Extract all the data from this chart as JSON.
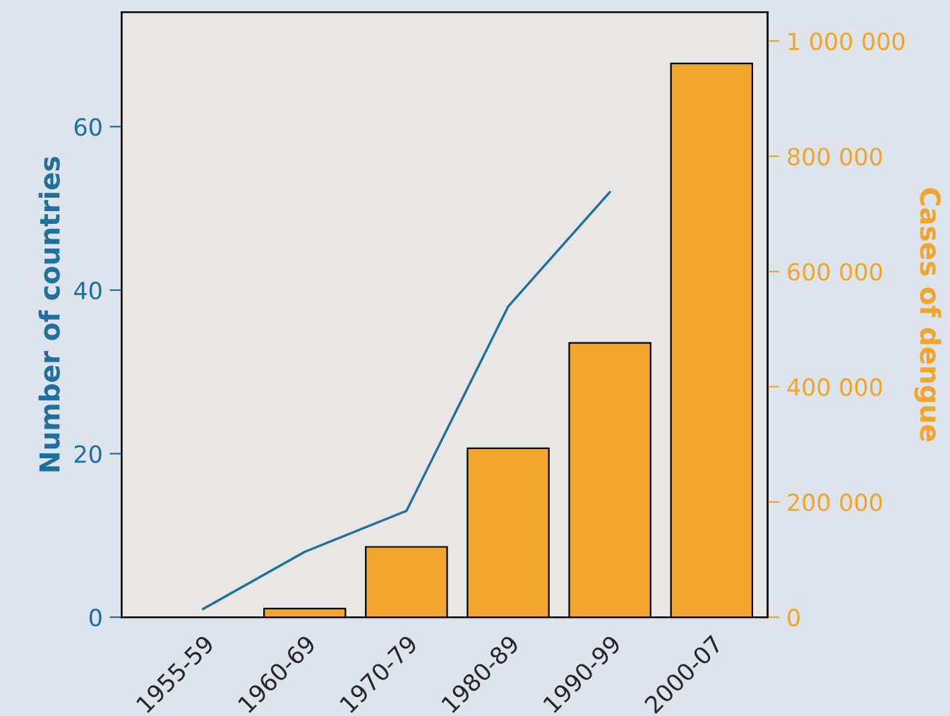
{
  "chart_data": {
    "type": "bar",
    "categories": [
      "1955-59",
      "1960-69",
      "1970-79",
      "1980-89",
      "1990-99",
      "2000-07"
    ],
    "ylabel": "Number of countries",
    "y2label": "Cases of dengue",
    "series": [
      {
        "type": "line",
        "color": "#1f6f9f",
        "values": [
          1,
          8,
          13,
          38,
          52,
          null
        ]
      },
      {
        "axis": "y2",
        "color": "#f2a52c",
        "values": [
          null,
          15000,
          122000,
          293000,
          476000,
          961000
        ]
      }
    ],
    "ylim": [
      0,
      74
    ],
    "yticks": [
      0,
      20,
      40,
      60
    ],
    "y2lim": [
      0,
      1050000
    ],
    "y2ticks": [
      {
        "value": 0,
        "label": "0"
      },
      {
        "value": 200000,
        "label": "200 000"
      },
      {
        "value": 400000,
        "label": "400 000"
      },
      {
        "value": 600000,
        "label": "600 000"
      },
      {
        "value": 800000,
        "label": "800 000"
      },
      {
        "value": 1000000,
        "label": "1 000 000"
      }
    ],
    "grid": false,
    "legend": false
  }
}
